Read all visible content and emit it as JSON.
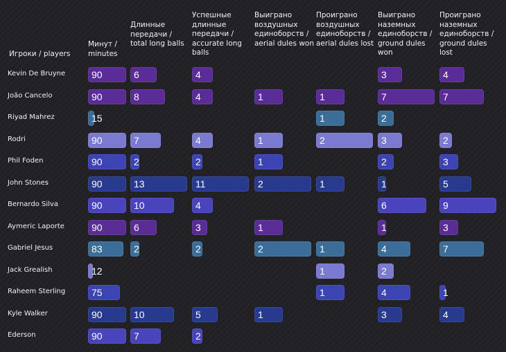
{
  "chart_data": {
    "type": "table",
    "corner_label": "Игроки / players",
    "columns": [
      {
        "key": "min",
        "label": "Минут / minutes",
        "max": 90
      },
      {
        "key": "long",
        "label": "Длинные передачи / total long balls",
        "max": 13
      },
      {
        "key": "acc",
        "label": "Успешные длинные передачи / accurate long balls",
        "max": 11
      },
      {
        "key": "aw",
        "label": "Выиграно воздушных единоборств / aerial dules won",
        "max": 2
      },
      {
        "key": "al",
        "label": "Проиграно воздушных единоборств / aerial dules lost",
        "max": 2
      },
      {
        "key": "gw",
        "label": "Выиграно наземных единоборств / ground dules won",
        "max": 7
      },
      {
        "key": "gl",
        "label": "Проиграно наземных единоборств / ground dules lost",
        "max": 9
      }
    ],
    "rows": [
      {
        "player": "Kevin De Bruyne",
        "values": [
          90,
          6,
          4,
          null,
          null,
          3,
          4
        ],
        "color": "#5a2c96"
      },
      {
        "player": "João Cancelo",
        "values": [
          90,
          8,
          4,
          1,
          1,
          7,
          7
        ],
        "color": "#5a2c96"
      },
      {
        "player": "Riyad Mahrez",
        "values": [
          15,
          null,
          null,
          null,
          1,
          2,
          null
        ],
        "color": "#3a6e98"
      },
      {
        "player": "Rodri",
        "values": [
          90,
          7,
          4,
          1,
          2,
          3,
          2
        ],
        "color": "#7a7ad0"
      },
      {
        "player": "Phil Foden",
        "values": [
          90,
          2,
          2,
          1,
          null,
          2,
          3
        ],
        "color": "#3c44b4"
      },
      {
        "player": "John Stones",
        "values": [
          90,
          13,
          11,
          2,
          1,
          1,
          5
        ],
        "color": "#283a8e"
      },
      {
        "player": "Bernardo Silva",
        "values": [
          90,
          10,
          4,
          null,
          null,
          6,
          9
        ],
        "color": "#4a44bc"
      },
      {
        "player": "Aymeric Laporte",
        "values": [
          90,
          6,
          3,
          1,
          null,
          1,
          3
        ],
        "color": "#5a2c96"
      },
      {
        "player": "Gabriel Jesus",
        "values": [
          83,
          2,
          2,
          2,
          1,
          4,
          7
        ],
        "color": "#3a6e98"
      },
      {
        "player": "Jack Grealish",
        "values": [
          12,
          null,
          null,
          null,
          1,
          2,
          null
        ],
        "color": "#7a7ad0"
      },
      {
        "player": "Raheem Sterling",
        "values": [
          75,
          null,
          null,
          null,
          1,
          4,
          1
        ],
        "color": "#3c44b4"
      },
      {
        "player": "Kyle Walker",
        "values": [
          90,
          10,
          5,
          1,
          null,
          3,
          4
        ],
        "color": "#283a8e"
      },
      {
        "player": "Ederson",
        "values": [
          90,
          7,
          2,
          null,
          null,
          null,
          null
        ],
        "color": "#4a44bc"
      }
    ]
  }
}
